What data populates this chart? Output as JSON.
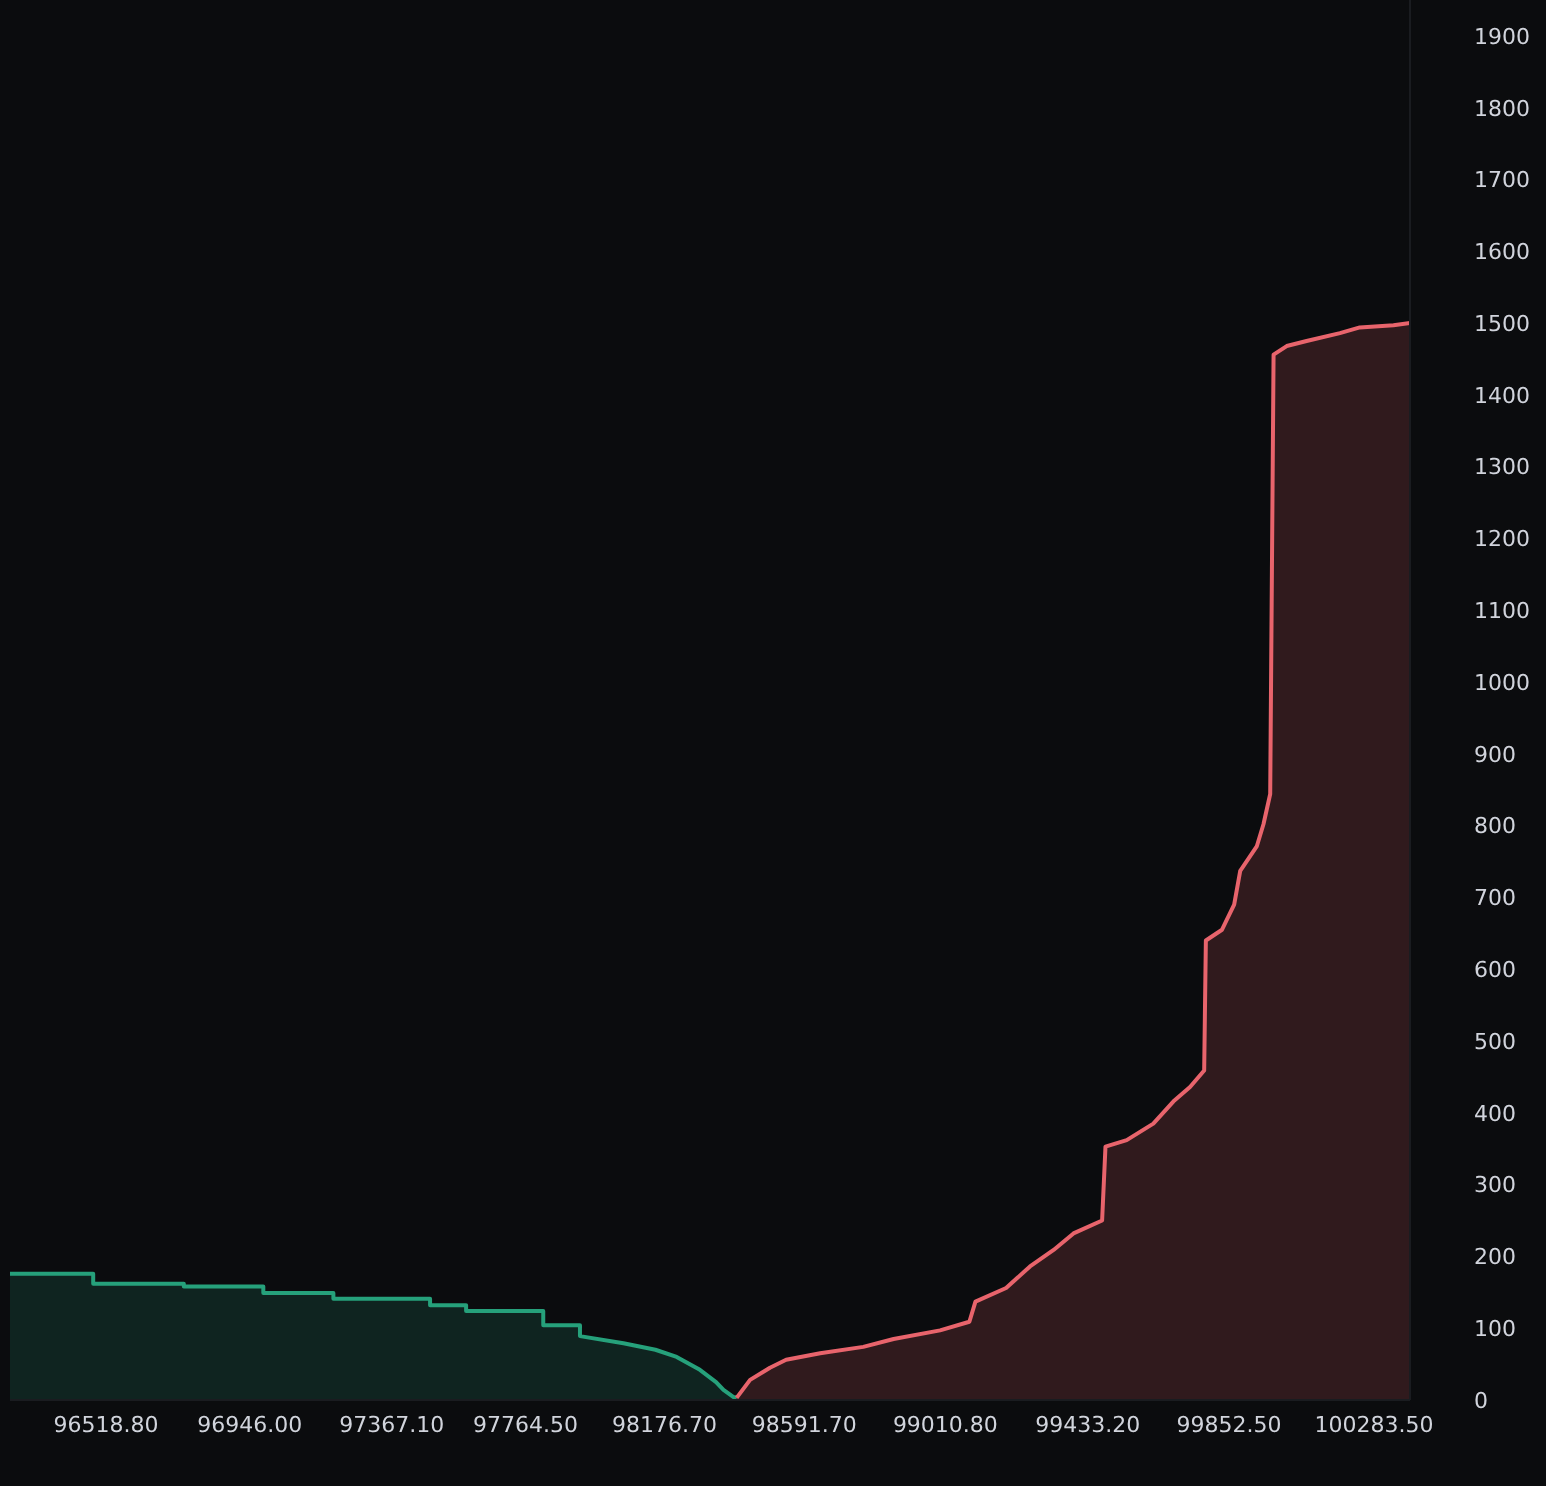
{
  "chart_data": {
    "type": "area",
    "xlim": [
      96234,
      100390
    ],
    "ylim": [
      0,
      1950
    ],
    "xticks": [
      {
        "value": 96518.8,
        "label": "96518.80"
      },
      {
        "value": 96946,
        "label": "96946.00"
      },
      {
        "value": 97367.1,
        "label": "97367.10"
      },
      {
        "value": 97764.5,
        "label": "97764.50"
      },
      {
        "value": 98176.7,
        "label": "98176.70"
      },
      {
        "value": 98591.7,
        "label": "98591.70"
      },
      {
        "value": 99010.8,
        "label": "99010.80"
      },
      {
        "value": 99433.2,
        "label": "99433.20"
      },
      {
        "value": 99852.5,
        "label": "99852.50"
      },
      {
        "value": 100283.5,
        "label": "100283.50"
      }
    ],
    "yticks": [
      0,
      100,
      200,
      300,
      400,
      500,
      600,
      700,
      800,
      900,
      1000,
      1100,
      1200,
      1300,
      1400,
      1500,
      1600,
      1700,
      1800,
      1900
    ],
    "grid": false,
    "legend": false,
    "series": [
      {
        "type": "area",
        "color": "#26a17b",
        "x": [
          96234,
          96481,
          96481,
          96750,
          96750,
          96986,
          96986,
          97194,
          97194,
          97481,
          97481,
          97588,
          97588,
          97817,
          97817,
          97926,
          97926,
          98055,
          98150,
          98213,
          98282,
          98330,
          98352,
          98382,
          98391
        ],
        "values": [
          176,
          176,
          162,
          162,
          158,
          158,
          149,
          149,
          141,
          141,
          132,
          132,
          124,
          124,
          104,
          104,
          89,
          79,
          70,
          60,
          42,
          25,
          14,
          4,
          4
        ]
      },
      {
        "type": "area",
        "color": "#e8646c",
        "x": [
          98391,
          98431,
          98490,
          98538,
          98639,
          98767,
          98857,
          98995,
          99082,
          99100,
          99191,
          99262,
          99332,
          99391,
          99476,
          99486,
          99549,
          99628,
          99688,
          99737,
          99779,
          99784,
          99832,
          99868,
          99886,
          99935,
          99955,
          99975,
          99985,
          100024,
          100083,
          100182,
          100241,
          100341,
          100390
        ],
        "values": [
          3,
          28,
          45,
          56,
          65,
          74,
          85,
          97,
          109,
          137,
          156,
          186,
          209,
          232,
          250,
          353,
          362,
          385,
          416,
          436,
          459,
          640,
          655,
          690,
          737,
          771,
          802,
          844,
          1456,
          1468,
          1475,
          1486,
          1494,
          1497,
          1500
        ]
      }
    ]
  }
}
